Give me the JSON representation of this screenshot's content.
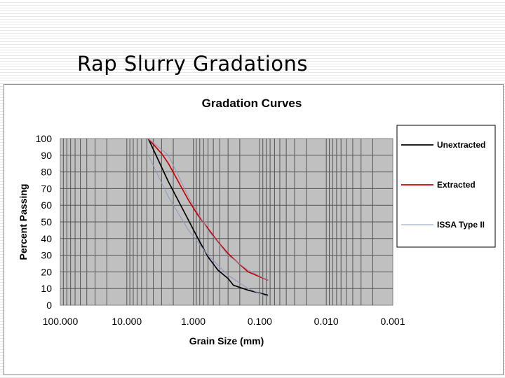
{
  "slide": {
    "title": "Rap Slurry Gradations"
  },
  "chart_data": {
    "type": "line",
    "title": "Gradation Curves",
    "xlabel": "Grain Size (mm)",
    "ylabel": "Percent Passing",
    "x_scale": "log",
    "x_reversed": true,
    "xlim": [
      100,
      0.001
    ],
    "ylim": [
      0,
      100
    ],
    "x_ticks": [
      "100.000",
      "10.000",
      "1.000",
      "0.100",
      "0.010",
      "0.001"
    ],
    "x_tick_values": [
      100,
      10,
      1,
      0.1,
      0.01,
      0.001
    ],
    "y_ticks": [
      0,
      10,
      20,
      30,
      40,
      50,
      60,
      70,
      80,
      90,
      100
    ],
    "grid": true,
    "legend": "right",
    "series": [
      {
        "name": "Unextracted",
        "color": "#000000",
        "x": [
          4.75,
          2.36,
          1.18,
          0.85,
          0.6,
          0.425,
          0.3,
          0.25,
          0.15,
          0.075
        ],
        "y": [
          100,
          74,
          51,
          40,
          29,
          21,
          16,
          12,
          9,
          6
        ]
      },
      {
        "name": "Extracted",
        "color": "#cc0000",
        "x": [
          4.75,
          3.0,
          2.36,
          1.18,
          0.85,
          0.6,
          0.425,
          0.3,
          0.25,
          0.15,
          0.075
        ],
        "y": [
          100,
          91,
          85,
          63,
          54,
          46,
          38,
          31,
          28,
          20,
          15
        ]
      },
      {
        "name": "ISSA Type II",
        "color": "#8f99bb",
        "x": [
          4.75,
          2.36,
          1.18,
          0.6,
          0.3,
          0.15,
          0.075
        ],
        "y": [
          100,
          90,
          65,
          45,
          30,
          21,
          15
        ]
      },
      {
        "name": "",
        "color": "#8f99bb",
        "x": [
          4.75,
          2.36,
          1.18,
          0.6,
          0.3,
          0.15,
          0.075
        ],
        "y": [
          90,
          65,
          45,
          30,
          18,
          10,
          5
        ]
      }
    ]
  }
}
